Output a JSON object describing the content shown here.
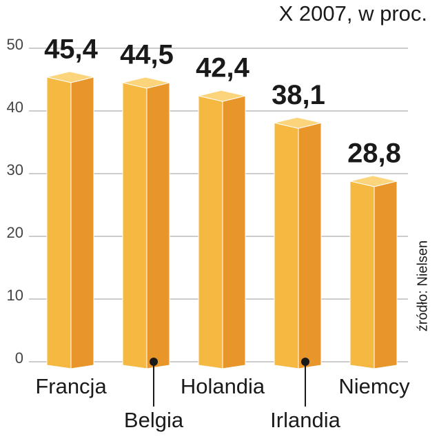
{
  "chart_data": {
    "type": "bar3d",
    "title": "X 2007, w proc.",
    "source": "źródło: Nielsen",
    "categories": [
      "Francja",
      "Belgia",
      "Holandia",
      "Irlandia",
      "Niemcy"
    ],
    "values": [
      45.4,
      44.5,
      42.4,
      38.1,
      28.8
    ],
    "value_labels": [
      "45,4",
      "44,5",
      "42,4",
      "38,1",
      "28,8"
    ],
    "colors": {
      "front": "#f5b942",
      "side": "#e8962a",
      "top": "#fcd47c"
    },
    "ylim": [
      0,
      50
    ],
    "yticks": [
      0,
      10,
      20,
      30,
      40,
      50
    ],
    "grid": true
  }
}
